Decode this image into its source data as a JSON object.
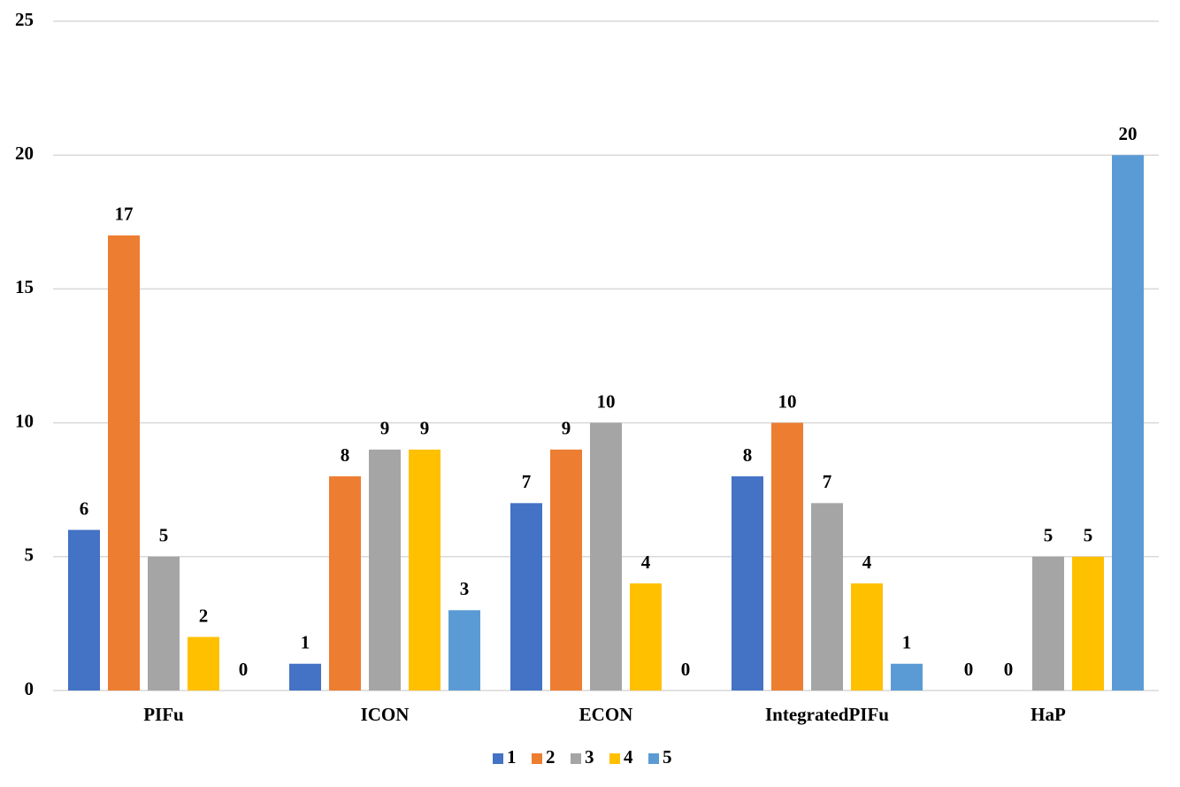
{
  "chart_data": {
    "type": "bar",
    "categories": [
      "PIFu",
      "ICON",
      "ECON",
      "IntegratedPIFu",
      "HaP"
    ],
    "series": [
      {
        "name": "1",
        "color": "#4472c4",
        "values": [
          6,
          1,
          7,
          8,
          0
        ]
      },
      {
        "name": "2",
        "color": "#ed7d31",
        "values": [
          17,
          8,
          9,
          10,
          0
        ]
      },
      {
        "name": "3",
        "color": "#a5a5a5",
        "values": [
          5,
          9,
          10,
          7,
          5
        ]
      },
      {
        "name": "4",
        "color": "#ffc000",
        "values": [
          2,
          9,
          4,
          4,
          5
        ]
      },
      {
        "name": "5",
        "color": "#5b9bd5",
        "values": [
          0,
          3,
          0,
          1,
          20
        ]
      }
    ],
    "ylim": [
      0,
      25
    ],
    "yticks": [
      0,
      5,
      10,
      15,
      20,
      25
    ],
    "grid": true,
    "legend": "bottom"
  }
}
